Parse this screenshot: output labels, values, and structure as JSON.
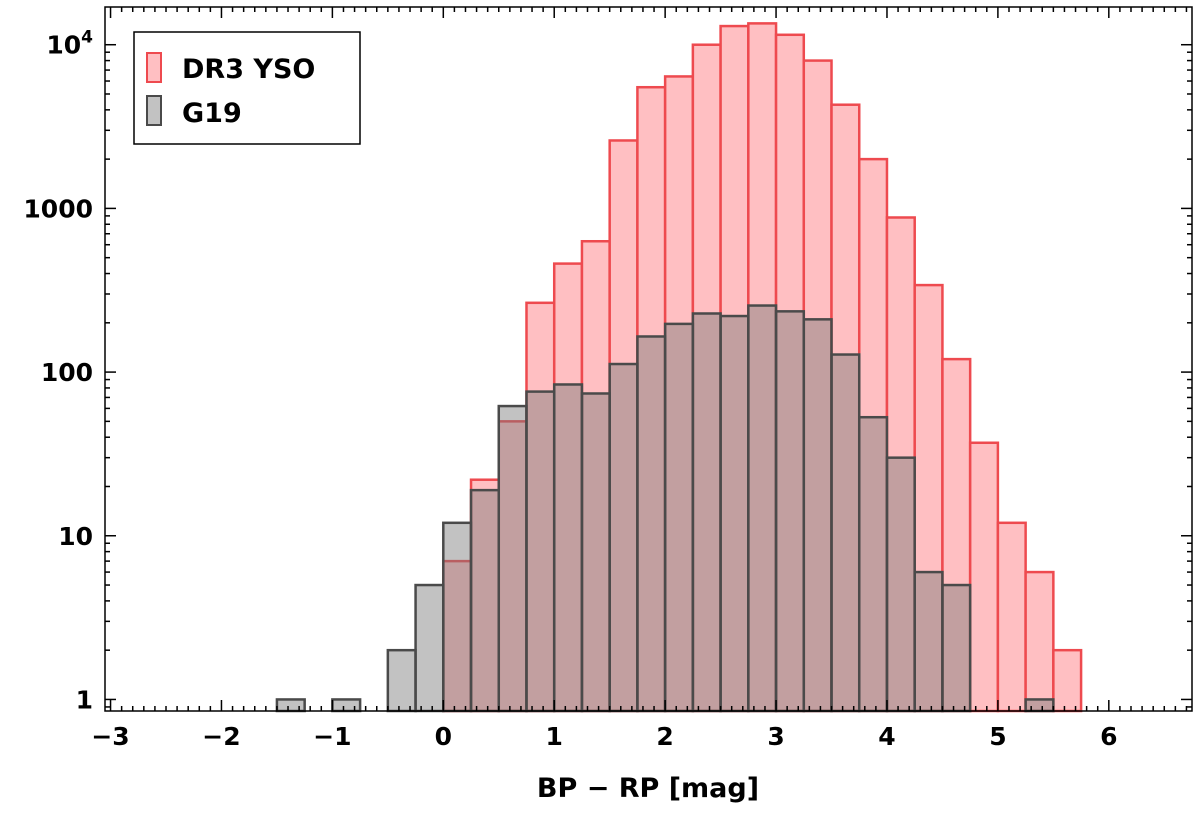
{
  "chart_data": {
    "type": "bar",
    "xlabel": "BP − RP [mag]",
    "ylabel": "",
    "xlim": [
      -3.05,
      6.75
    ],
    "ylim": [
      0.85,
      17000
    ],
    "yscale": "log",
    "bin_width": 0.25,
    "grid": false,
    "legend_position": "top-left",
    "x_ticks": [
      {
        "value": -3,
        "label": "−3"
      },
      {
        "value": -2,
        "label": "−2"
      },
      {
        "value": -1,
        "label": "−1"
      },
      {
        "value": 0,
        "label": "0"
      },
      {
        "value": 1,
        "label": "1"
      },
      {
        "value": 2,
        "label": "2"
      },
      {
        "value": 3,
        "label": "3"
      },
      {
        "value": 4,
        "label": "4"
      },
      {
        "value": 5,
        "label": "5"
      },
      {
        "value": 6,
        "label": "6"
      }
    ],
    "y_ticks": [
      {
        "value": 1,
        "label": "1"
      },
      {
        "value": 10,
        "label": "10"
      },
      {
        "value": 100,
        "label": "100"
      },
      {
        "value": 1000,
        "label": "1000"
      },
      {
        "value": 10000,
        "label": "10",
        "sup": "4"
      }
    ],
    "series": [
      {
        "name": "DR3 YSO",
        "fill": "#ffbfc2",
        "stroke": "#ee4a4f",
        "bins": [
          {
            "x0": 0.0,
            "value": 7
          },
          {
            "x0": 0.25,
            "value": 22
          },
          {
            "x0": 0.5,
            "value": 50
          },
          {
            "x0": 0.75,
            "value": 265
          },
          {
            "x0": 1.0,
            "value": 460
          },
          {
            "x0": 1.25,
            "value": 630
          },
          {
            "x0": 1.5,
            "value": 2600
          },
          {
            "x0": 1.75,
            "value": 5500
          },
          {
            "x0": 2.0,
            "value": 6400
          },
          {
            "x0": 2.25,
            "value": 10000
          },
          {
            "x0": 2.5,
            "value": 13000
          },
          {
            "x0": 2.75,
            "value": 13500
          },
          {
            "x0": 3.0,
            "value": 11500
          },
          {
            "x0": 3.25,
            "value": 8000
          },
          {
            "x0": 3.5,
            "value": 4300
          },
          {
            "x0": 3.75,
            "value": 2000
          },
          {
            "x0": 4.0,
            "value": 880
          },
          {
            "x0": 4.25,
            "value": 340
          },
          {
            "x0": 4.5,
            "value": 120
          },
          {
            "x0": 4.75,
            "value": 37
          },
          {
            "x0": 5.0,
            "value": 12
          },
          {
            "x0": 5.25,
            "value": 6
          },
          {
            "x0": 5.5,
            "value": 2
          }
        ]
      },
      {
        "name": "G19",
        "fill": "rgba(120,120,120,0.45)",
        "stroke": "#4a4a4a",
        "bins": [
          {
            "x0": -1.5,
            "value": 1
          },
          {
            "x0": -1.0,
            "value": 1
          },
          {
            "x0": -0.5,
            "value": 2
          },
          {
            "x0": -0.25,
            "value": 5
          },
          {
            "x0": 0.0,
            "value": 12
          },
          {
            "x0": 0.25,
            "value": 19
          },
          {
            "x0": 0.5,
            "value": 62
          },
          {
            "x0": 0.75,
            "value": 76
          },
          {
            "x0": 1.0,
            "value": 84
          },
          {
            "x0": 1.25,
            "value": 74
          },
          {
            "x0": 1.5,
            "value": 112
          },
          {
            "x0": 1.75,
            "value": 165
          },
          {
            "x0": 2.0,
            "value": 197
          },
          {
            "x0": 2.25,
            "value": 228
          },
          {
            "x0": 2.5,
            "value": 220
          },
          {
            "x0": 2.75,
            "value": 255
          },
          {
            "x0": 3.0,
            "value": 235
          },
          {
            "x0": 3.25,
            "value": 210
          },
          {
            "x0": 3.5,
            "value": 128
          },
          {
            "x0": 3.75,
            "value": 53
          },
          {
            "x0": 4.0,
            "value": 30
          },
          {
            "x0": 4.25,
            "value": 6
          },
          {
            "x0": 4.5,
            "value": 5
          },
          {
            "x0": 5.25,
            "value": 1
          }
        ]
      }
    ]
  }
}
